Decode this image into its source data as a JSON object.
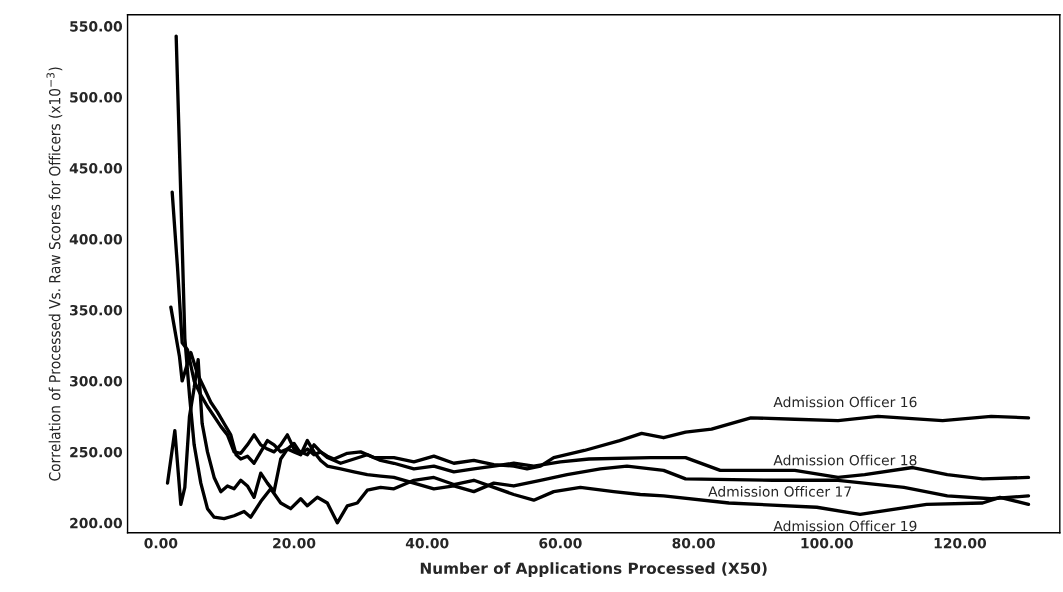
{
  "chart_data": {
    "type": "line",
    "xlabel": "Number of Applications Processed (X50)",
    "ylabel": "Correlation of Processed Vs. Raw Scores for Officers (x10$^{−3}$)",
    "xlim": [
      -5,
      135
    ],
    "ylim": [
      193,
      558
    ],
    "xticks": [
      {
        "value": 0,
        "label": "0.00"
      },
      {
        "value": 20,
        "label": "20.00"
      },
      {
        "value": 40,
        "label": "40.00"
      },
      {
        "value": 60,
        "label": "60.00"
      },
      {
        "value": 80,
        "label": "80.00"
      },
      {
        "value": 100,
        "label": "100.00"
      },
      {
        "value": 120,
        "label": "120.00"
      }
    ],
    "yticks": [
      {
        "value": 200,
        "label": "200.00"
      },
      {
        "value": 250,
        "label": "250.00"
      },
      {
        "value": 300,
        "label": "300.00"
      },
      {
        "value": 350,
        "label": "350.00"
      },
      {
        "value": 400,
        "label": "400.00"
      },
      {
        "value": 450,
        "label": "450.00"
      },
      {
        "value": 500,
        "label": "500.00"
      },
      {
        "value": 550,
        "label": "550.00"
      }
    ],
    "grid": false,
    "legend": false,
    "marker": "none",
    "line_style": "solid",
    "series": [
      {
        "name": "Admission Officer 16",
        "color": "#000000",
        "x": [
          1.7,
          2.5,
          3.2,
          4,
          5,
          6,
          7,
          8,
          9,
          10,
          11,
          12,
          13,
          14,
          15,
          16,
          17,
          18,
          19,
          20,
          21,
          22,
          23,
          24,
          25,
          26,
          28,
          30,
          32,
          35,
          38,
          41,
          44,
          47,
          50,
          53,
          55,
          57,
          59,
          63.6,
          68.9,
          72.2,
          75.5,
          78.8,
          82.7,
          88.6,
          95.2,
          101.7,
          107.7,
          117.4,
          124.7,
          130.3
        ],
        "values": [
          433,
          380,
          327,
          322,
          300,
          290,
          282,
          275,
          268,
          262,
          250,
          249,
          255,
          262,
          255,
          252,
          250,
          255,
          262,
          252,
          250,
          248,
          255,
          250,
          247,
          245,
          249,
          250,
          246,
          246,
          243,
          247,
          242,
          244,
          241,
          240,
          238,
          240,
          246,
          251,
          258,
          263,
          260,
          264,
          266,
          274,
          273,
          272,
          275,
          272,
          275,
          274
        ]
      },
      {
        "name": "Admission Officer 18",
        "color": "#000000",
        "x": [
          1.5,
          2.8,
          3.2,
          4.5,
          5.5,
          6.5,
          7.5,
          8.5,
          9.5,
          10.5,
          11.3,
          12,
          13,
          14,
          15,
          16,
          17,
          18,
          19,
          20,
          21,
          22,
          23,
          24,
          25,
          27,
          29,
          31,
          33,
          35,
          38,
          41,
          44,
          47,
          50,
          53,
          56,
          60,
          64.3,
          73.5,
          78.8,
          84,
          95.2,
          101.7,
          105.7,
          112.9,
          118.1,
          123.4,
          130.3
        ],
        "values": [
          352,
          317,
          300,
          320,
          305,
          295,
          285,
          278,
          270,
          262,
          248,
          245,
          247,
          242,
          250,
          258,
          255,
          250,
          252,
          256,
          249,
          252,
          248,
          250,
          246,
          242,
          245,
          248,
          244,
          242,
          238,
          240,
          236,
          238,
          240,
          242,
          240,
          243,
          245,
          246,
          246,
          237,
          237,
          232,
          234,
          239,
          234,
          231,
          232
        ]
      },
      {
        "name": "Admission Officer 17",
        "color": "#000000",
        "x": [
          1,
          2.1,
          3,
          3.6,
          4.3,
          5,
          5.6,
          6.2,
          7,
          8,
          9,
          10,
          11,
          12,
          13,
          14,
          15,
          16,
          17,
          18,
          19,
          20,
          21,
          22,
          23,
          24,
          25,
          27,
          29,
          31,
          33,
          35,
          38,
          41,
          44,
          47,
          50,
          53,
          57,
          61,
          66,
          70,
          75.5,
          78.8,
          91.9,
          101.7,
          111.6,
          118.1,
          124.7,
          130.3
        ],
        "values": [
          228,
          265,
          213,
          225,
          275,
          295,
          315,
          270,
          250,
          232,
          222,
          226,
          224,
          230,
          226,
          218,
          235,
          228,
          222,
          245,
          252,
          250,
          248,
          258,
          250,
          244,
          240,
          238,
          236,
          234,
          233,
          232,
          228,
          224,
          226,
          222,
          228,
          226,
          230,
          234,
          238,
          240,
          237,
          231,
          230,
          230,
          225,
          219,
          217,
          219
        ]
      },
      {
        "name": "Admission Officer 19",
        "color": "#000000",
        "x": [
          2.3,
          3,
          3.6,
          4.3,
          5,
          6,
          7,
          8,
          9.5,
          11,
          12.5,
          13.5,
          15,
          16.5,
          18,
          19.5,
          21,
          22,
          23.5,
          25,
          26.5,
          28,
          29.5,
          31,
          33,
          35,
          38,
          41,
          44,
          47,
          50,
          53,
          56,
          59,
          63,
          68,
          72,
          75.5,
          85.3,
          98.5,
          105,
          115,
          123.4,
          126,
          130.3
        ],
        "values": [
          543,
          430,
          330,
          290,
          255,
          228,
          210,
          204,
          203,
          205,
          208,
          204,
          215,
          224,
          214,
          210,
          217,
          212,
          218,
          214,
          200,
          212,
          214,
          223,
          225,
          224,
          230,
          232,
          227,
          230,
          225,
          220,
          216,
          222,
          225,
          222,
          220,
          219,
          214,
          211,
          206,
          213,
          214,
          218,
          213
        ]
      }
    ]
  }
}
